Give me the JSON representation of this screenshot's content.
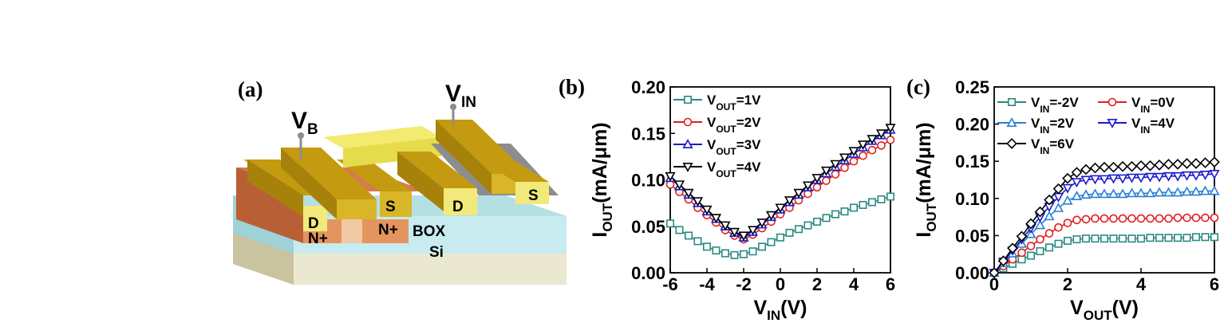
{
  "panel_labels": {
    "a": "(a)",
    "b": "(b)",
    "c": "(c)"
  },
  "device": {
    "vb_main": "V",
    "vb_sub": "B",
    "vin_main": "V",
    "vin_sub": "IN",
    "left_d": "D",
    "left_s": "S",
    "left_n1": "N+",
    "left_n2": "N+",
    "box": "BOX",
    "si": "Si",
    "right_d": "D",
    "right_s": "S"
  },
  "chart_b_text": {
    "x_main": "V",
    "x_sub": "IN",
    "x_unit": "(V)",
    "y_main": "I",
    "y_sub": "OUT",
    "y_unit": "(mA/μm)",
    "legend": [
      {
        "main": "V",
        "sub": "OUT",
        "val": "=1V"
      },
      {
        "main": "V",
        "sub": "OUT",
        "val": "=2V"
      },
      {
        "main": "V",
        "sub": "OUT",
        "val": "=3V"
      },
      {
        "main": "V",
        "sub": "OUT",
        "val": "=4V"
      }
    ]
  },
  "chart_c_text": {
    "x_main": "V",
    "x_sub": "OUT",
    "x_unit": "(V)",
    "y_main": "I",
    "y_sub": "OUT",
    "y_unit": "(mA/μm)",
    "legend": [
      {
        "main": "V",
        "sub": "IN",
        "val": "=-2V"
      },
      {
        "main": "V",
        "sub": "IN",
        "val": "=0V"
      },
      {
        "main": "V",
        "sub": "IN",
        "val": "=2V"
      },
      {
        "main": "V",
        "sub": "IN",
        "val": "=4V"
      },
      {
        "main": "V",
        "sub": "IN",
        "val": "=6V"
      }
    ]
  },
  "chart_data": [
    {
      "type": "line",
      "panel": "(b)",
      "xlabel": "VIN(V)",
      "ylabel": "IOUT(mA/μm)",
      "xlim": [
        -6,
        6
      ],
      "ylim": [
        0,
        0.2
      ],
      "xticks": [
        "-6",
        "-4",
        "-2",
        "0",
        "2",
        "4",
        "6"
      ],
      "yticks": [
        "0.00",
        "0.05",
        "0.10",
        "0.15",
        "0.20"
      ],
      "legend_position": "top-left",
      "x": [
        -6,
        -5.5,
        -5,
        -4.5,
        -4,
        -3.5,
        -3,
        -2.5,
        -2,
        -1.5,
        -1,
        -0.5,
        0,
        0.5,
        1,
        1.5,
        2,
        2.5,
        3,
        3.5,
        4,
        4.5,
        5,
        5.5,
        6
      ],
      "series": [
        {
          "name": "VOUT=1V",
          "color": "#2a8a82",
          "marker": "square",
          "values": [
            0.053,
            0.046,
            0.04,
            0.034,
            0.028,
            0.024,
            0.021,
            0.019,
            0.02,
            0.023,
            0.028,
            0.033,
            0.038,
            0.043,
            0.047,
            0.051,
            0.055,
            0.059,
            0.063,
            0.066,
            0.07,
            0.073,
            0.076,
            0.079,
            0.082
          ]
        },
        {
          "name": "VOUT=2V",
          "color": "#e02020",
          "marker": "circle",
          "values": [
            0.095,
            0.087,
            0.079,
            0.07,
            0.062,
            0.054,
            0.046,
            0.04,
            0.036,
            0.041,
            0.048,
            0.055,
            0.063,
            0.07,
            0.078,
            0.085,
            0.092,
            0.099,
            0.106,
            0.113,
            0.12,
            0.126,
            0.132,
            0.137,
            0.143
          ]
        },
        {
          "name": "VOUT=3V",
          "color": "#1a1acc",
          "marker": "triangle-up",
          "values": [
            0.102,
            0.093,
            0.084,
            0.075,
            0.066,
            0.058,
            0.05,
            0.043,
            0.038,
            0.044,
            0.052,
            0.06,
            0.068,
            0.076,
            0.084,
            0.092,
            0.1,
            0.107,
            0.114,
            0.121,
            0.128,
            0.135,
            0.142,
            0.148,
            0.154
          ]
        },
        {
          "name": "VOUT=4V",
          "color": "#000000",
          "marker": "triangle-down",
          "values": [
            0.104,
            0.095,
            0.086,
            0.077,
            0.068,
            0.059,
            0.051,
            0.044,
            0.04,
            0.046,
            0.054,
            0.062,
            0.07,
            0.078,
            0.086,
            0.094,
            0.102,
            0.11,
            0.117,
            0.124,
            0.131,
            0.138,
            0.144,
            0.15,
            0.156
          ]
        }
      ]
    },
    {
      "type": "line",
      "panel": "(c)",
      "xlabel": "VOUT(V)",
      "ylabel": "IOUT(mA/μm)",
      "xlim": [
        0,
        6
      ],
      "ylim": [
        0,
        0.25
      ],
      "xticks": [
        "0",
        "2",
        "4",
        "6"
      ],
      "yticks": [
        "0.00",
        "0.05",
        "0.10",
        "0.15",
        "0.20",
        "0.25"
      ],
      "legend_position": "top-left",
      "x": [
        0,
        0.25,
        0.5,
        0.75,
        1,
        1.25,
        1.5,
        1.75,
        2,
        2.25,
        2.5,
        2.75,
        3,
        3.25,
        3.5,
        3.75,
        4,
        4.25,
        4.5,
        4.75,
        5,
        5.25,
        5.5,
        5.75,
        6
      ],
      "series": [
        {
          "name": "VIN=-2V",
          "color": "#2a8a82",
          "marker": "square",
          "values": [
            0.0,
            0.006,
            0.012,
            0.018,
            0.023,
            0.029,
            0.034,
            0.039,
            0.043,
            0.045,
            0.046,
            0.046,
            0.046,
            0.046,
            0.046,
            0.046,
            0.046,
            0.047,
            0.047,
            0.047,
            0.047,
            0.047,
            0.048,
            0.048,
            0.048
          ]
        },
        {
          "name": "VIN=0V",
          "color": "#e02020",
          "marker": "circle",
          "values": [
            0.0,
            0.009,
            0.018,
            0.027,
            0.036,
            0.045,
            0.053,
            0.061,
            0.067,
            0.071,
            0.072,
            0.073,
            0.073,
            0.073,
            0.073,
            0.073,
            0.073,
            0.073,
            0.073,
            0.073,
            0.074,
            0.074,
            0.074,
            0.074,
            0.074
          ]
        },
        {
          "name": "VIN=2V",
          "color": "#2a7fd4",
          "marker": "triangle-up",
          "values": [
            0.0,
            0.013,
            0.026,
            0.039,
            0.052,
            0.064,
            0.076,
            0.087,
            0.097,
            0.103,
            0.105,
            0.106,
            0.106,
            0.106,
            0.106,
            0.107,
            0.107,
            0.107,
            0.108,
            0.108,
            0.108,
            0.109,
            0.109,
            0.11,
            0.11
          ]
        },
        {
          "name": "VIN=4V",
          "color": "#1a1acc",
          "marker": "triangle-down",
          "values": [
            0.0,
            0.015,
            0.03,
            0.045,
            0.06,
            0.075,
            0.089,
            0.102,
            0.114,
            0.122,
            0.125,
            0.126,
            0.126,
            0.127,
            0.127,
            0.128,
            0.128,
            0.129,
            0.129,
            0.13,
            0.13,
            0.131,
            0.131,
            0.132,
            0.133
          ]
        },
        {
          "name": "VIN=6V",
          "color": "#000000",
          "marker": "diamond",
          "values": [
            0.0,
            0.016,
            0.033,
            0.049,
            0.066,
            0.082,
            0.098,
            0.113,
            0.127,
            0.135,
            0.139,
            0.141,
            0.142,
            0.142,
            0.143,
            0.143,
            0.144,
            0.144,
            0.145,
            0.146,
            0.146,
            0.147,
            0.147,
            0.148,
            0.149
          ]
        }
      ]
    }
  ]
}
